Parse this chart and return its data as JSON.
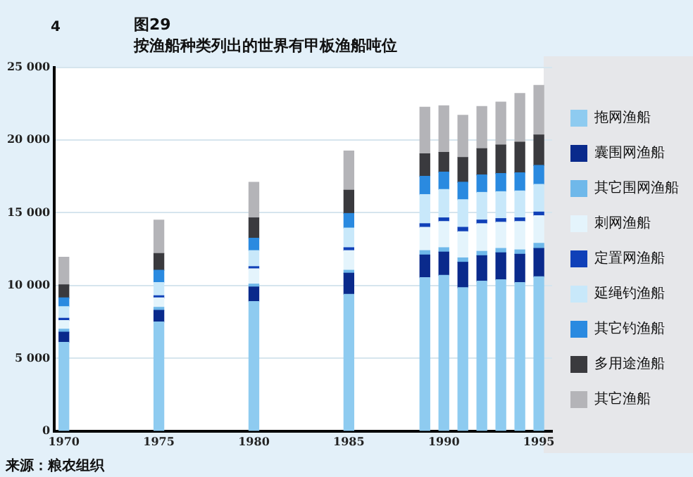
{
  "chart_data": {
    "type": "bar",
    "title": "图29",
    "subtitle": "按渔船种类列出的世界有甲板渔船吨位",
    "annotations": [
      "4",
      "来源：粮农组织"
    ],
    "x": [
      1970,
      1975,
      1980,
      1985,
      1989,
      1990,
      1991,
      1992,
      1993,
      1994,
      1995
    ],
    "xlim": [
      1969.5,
      1995.7
    ],
    "xticks": [
      1970,
      1975,
      1980,
      1985,
      1990,
      1995
    ],
    "ylim": [
      0,
      25000
    ],
    "yticks": [
      {
        "value": 0,
        "label": "0"
      },
      {
        "value": 5000,
        "label": "5 000"
      },
      {
        "value": 10000,
        "label": "10 000"
      },
      {
        "value": 15000,
        "label": "15 000"
      },
      {
        "value": 20000,
        "label": "20 000"
      },
      {
        "value": 25000,
        "label": "25 000"
      }
    ],
    "stacked": true,
    "grid": "y",
    "legend": "right",
    "series": [
      {
        "name": "拖网渔船",
        "color": "#8ecbf0",
        "values": [
          6100,
          7500,
          8900,
          9400,
          10550,
          10700,
          9850,
          10300,
          10400,
          10200,
          10600
        ]
      },
      {
        "name": "囊围网渔船",
        "color": "#0a2a8c",
        "values": [
          700,
          800,
          1000,
          1450,
          1550,
          1600,
          1750,
          1750,
          1850,
          1950,
          1950
        ]
      },
      {
        "name": "其它围网渔船",
        "color": "#6fb8ea",
        "values": [
          200,
          200,
          200,
          200,
          300,
          300,
          300,
          300,
          300,
          300,
          350
        ]
      },
      {
        "name": "刺网渔船",
        "color": "#e4f4fc",
        "values": [
          600,
          650,
          1050,
          1350,
          1600,
          1800,
          1800,
          1900,
          1800,
          1950,
          1900
        ]
      },
      {
        "name": "定置网渔船",
        "color": "#1040b8",
        "values": [
          150,
          150,
          150,
          200,
          250,
          250,
          300,
          250,
          250,
          250,
          250
        ]
      },
      {
        "name": "延绳钓渔船",
        "color": "#c8e8fa",
        "values": [
          800,
          900,
          1100,
          1350,
          2000,
          1950,
          1900,
          1900,
          1850,
          1850,
          1900
        ]
      },
      {
        "name": "其它钓渔船",
        "color": "#2a8ae0",
        "values": [
          600,
          850,
          850,
          1000,
          1250,
          1200,
          1200,
          1200,
          1250,
          1250,
          1300
        ]
      },
      {
        "name": "多用途渔船",
        "color": "#3a3a3e",
        "values": [
          900,
          1150,
          1400,
          1600,
          1550,
          1350,
          1700,
          1800,
          1950,
          2100,
          2100
        ]
      },
      {
        "name": "其它渔船",
        "color": "#b4b4b8",
        "values": [
          1900,
          2300,
          2450,
          2700,
          3200,
          3200,
          2900,
          2900,
          2950,
          3350,
          3400
        ]
      }
    ]
  }
}
